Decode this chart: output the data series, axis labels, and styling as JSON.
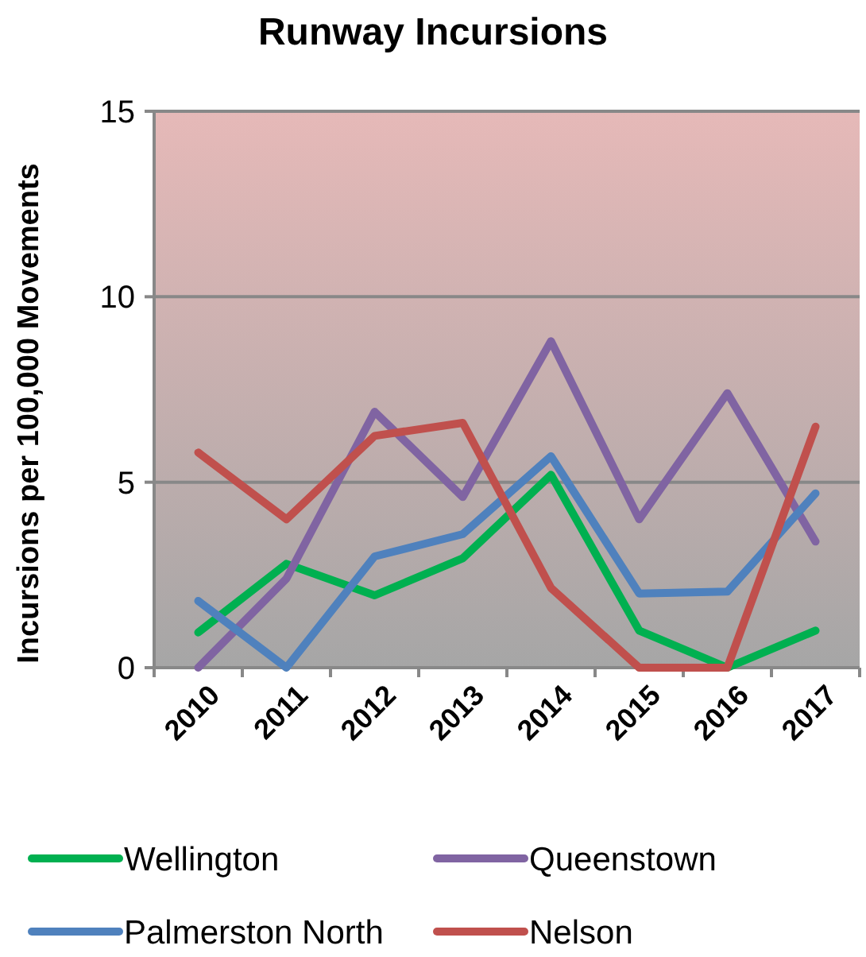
{
  "chart_data": {
    "type": "line",
    "title": "Runway Incursions",
    "ylabel": "Incursions per 100,000 Movements",
    "categories": [
      "2010",
      "2011",
      "2012",
      "2013",
      "2014",
      "2015",
      "2016",
      "2017"
    ],
    "ylim": [
      0,
      15
    ],
    "yticks": [
      0,
      5,
      10,
      15
    ],
    "grid": "y",
    "legend": "bottom",
    "marker": "none",
    "line_style": "solid",
    "series": [
      {
        "name": "Wellington",
        "color": "#00b050",
        "values": [
          0.95,
          2.8,
          1.95,
          2.95,
          5.2,
          1.0,
          0,
          1.0
        ]
      },
      {
        "name": "Queenstown",
        "color": "#8064a2",
        "values": [
          0,
          2.4,
          6.9,
          4.6,
          8.8,
          4.0,
          7.4,
          3.4
        ]
      },
      {
        "name": "Palmerston North",
        "color": "#4f81bd",
        "values": [
          1.8,
          0,
          3.0,
          3.6,
          5.7,
          2.0,
          2.05,
          4.7
        ]
      },
      {
        "name": "Nelson",
        "color": "#c0504d",
        "values": [
          5.8,
          4.0,
          6.25,
          6.6,
          2.15,
          0,
          0,
          6.5
        ]
      }
    ]
  }
}
